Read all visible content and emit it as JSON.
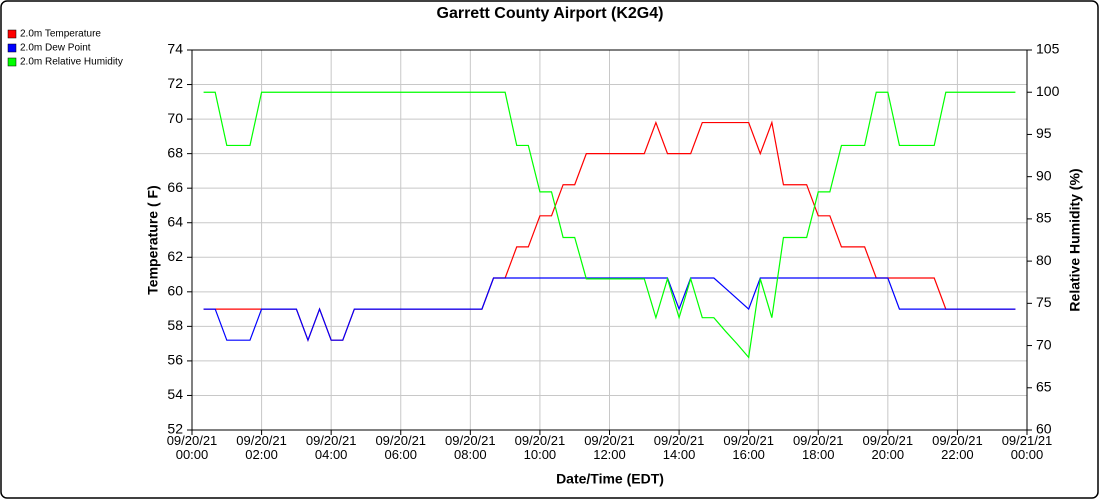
{
  "chart_data": {
    "type": "line",
    "title": "Garrett County Airport (K2G4)",
    "xlabel": "Date/Time (EDT)",
    "ylabel": "Temperature ( F)",
    "y2label": "Relative Humidity (%)",
    "legend": "top-left",
    "grid": true,
    "x": [
      20,
      40,
      60,
      80,
      100,
      120,
      140,
      160,
      180,
      200,
      220,
      240,
      260,
      280,
      300,
      320,
      340,
      360,
      380,
      400,
      420,
      440,
      460,
      480,
      500,
      520,
      540,
      560,
      580,
      600,
      620,
      640,
      660,
      680,
      700,
      720,
      740,
      760,
      780,
      800,
      820,
      840,
      860,
      880,
      900,
      920,
      940,
      960,
      980,
      1000,
      1020,
      1040,
      1060,
      1080,
      1100,
      1120,
      1140,
      1160,
      1180,
      1200,
      1220,
      1240,
      1260,
      1280,
      1300,
      1320,
      1340,
      1360,
      1380,
      1400,
      1420
    ],
    "xlim": [
      0,
      1440
    ],
    "xticks": [
      {
        "value": 0,
        "label": "09/20/21 00:00"
      },
      {
        "value": 120,
        "label": "09/20/21 02:00"
      },
      {
        "value": 240,
        "label": "09/20/21 04:00"
      },
      {
        "value": 360,
        "label": "09/20/21 06:00"
      },
      {
        "value": 480,
        "label": "09/20/21 08:00"
      },
      {
        "value": 600,
        "label": "09/20/21 10:00"
      },
      {
        "value": 720,
        "label": "09/20/21 12:00"
      },
      {
        "value": 840,
        "label": "09/20/21 14:00"
      },
      {
        "value": 960,
        "label": "09/20/21 16:00"
      },
      {
        "value": 1080,
        "label": "09/20/21 18:00"
      },
      {
        "value": 1200,
        "label": "09/20/21 20:00"
      },
      {
        "value": 1320,
        "label": "09/20/21 22:00"
      },
      {
        "value": 1440,
        "label": "09/21/21 00:00"
      }
    ],
    "ylim": [
      52,
      74
    ],
    "yticks": [
      52,
      54,
      56,
      58,
      60,
      62,
      64,
      66,
      68,
      70,
      72,
      74
    ],
    "y2lim": [
      60,
      105
    ],
    "y2ticks": [
      60,
      65,
      70,
      75,
      80,
      85,
      90,
      95,
      100,
      105
    ],
    "series": [
      {
        "name": "2.0m Temperature",
        "color": "#ff0000",
        "values": [
          59,
          59,
          59,
          59,
          59,
          59,
          59,
          59,
          59,
          57.2,
          59,
          57.2,
          57.2,
          59,
          59,
          59,
          59,
          59,
          59,
          59,
          59,
          59,
          59,
          59,
          59,
          60.8,
          60.8,
          62.6,
          62.6,
          64.4,
          64.4,
          66.2,
          66.2,
          68,
          68,
          68,
          68,
          68,
          68,
          69.8,
          68,
          68,
          68,
          69.8,
          69.8,
          69.8,
          69.8,
          69.8,
          68,
          69.8,
          66.2,
          66.2,
          66.2,
          64.4,
          64.4,
          62.6,
          62.6,
          62.6,
          60.8,
          60.8,
          60.8,
          60.8,
          60.8,
          60.8,
          59,
          59,
          59,
          59,
          59,
          59,
          59
        ]
      },
      {
        "name": "2.0m Dew Point",
        "color": "#0000ff",
        "values": [
          59,
          59,
          57.2,
          57.2,
          57.2,
          59,
          59,
          59,
          59,
          57.2,
          59,
          57.2,
          57.2,
          59,
          59,
          59,
          59,
          59,
          59,
          59,
          59,
          59,
          59,
          59,
          59,
          60.8,
          60.8,
          60.8,
          60.8,
          60.8,
          60.8,
          60.8,
          60.8,
          60.8,
          60.8,
          60.8,
          60.8,
          60.8,
          60.8,
          60.8,
          60.8,
          59,
          60.8,
          60.8,
          60.8,
          60.2,
          59.6,
          59,
          60.8,
          60.8,
          60.8,
          60.8,
          60.8,
          60.8,
          60.8,
          60.8,
          60.8,
          60.8,
          60.8,
          60.8,
          59,
          59,
          59,
          59,
          59,
          59,
          59,
          59,
          59,
          59,
          59
        ]
      },
      {
        "name": "2.0m Relative Humidity",
        "color": "#00ff00",
        "axis": "y2",
        "values": [
          100,
          100,
          93.7,
          93.7,
          93.7,
          100,
          100,
          100,
          100,
          100,
          100,
          100,
          100,
          100,
          100,
          100,
          100,
          100,
          100,
          100,
          100,
          100,
          100,
          100,
          100,
          100,
          100,
          93.7,
          93.7,
          88.2,
          88.2,
          82.8,
          82.8,
          77.9,
          77.9,
          77.9,
          77.9,
          77.9,
          77.9,
          73.3,
          77.9,
          73.3,
          77.9,
          73.3,
          73.3,
          71.7,
          70.2,
          68.6,
          77.9,
          73.3,
          82.8,
          82.8,
          82.8,
          88.2,
          88.2,
          93.7,
          93.7,
          93.7,
          100,
          100,
          93.7,
          93.7,
          93.7,
          93.7,
          100,
          100,
          100,
          100,
          100,
          100,
          100
        ]
      }
    ]
  }
}
